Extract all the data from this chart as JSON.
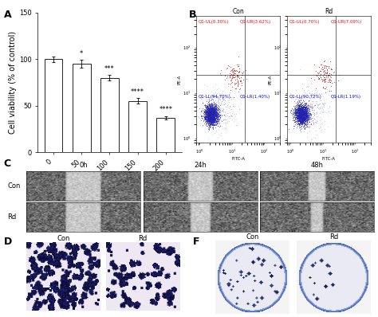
{
  "bar_values": [
    100,
    95,
    80,
    55,
    37
  ],
  "bar_errors": [
    3,
    4,
    3,
    3,
    2
  ],
  "bar_categories": [
    "0",
    "50",
    "100",
    "150",
    "200"
  ],
  "bar_color": "#ffffff",
  "bar_edgecolor": "#000000",
  "ylabel": "Cell viability (% of control)",
  "ylim": [
    0,
    150
  ],
  "yticks": [
    0,
    50,
    100,
    150
  ],
  "significance": [
    "",
    "*",
    "***",
    "****",
    "****"
  ],
  "panel_label_fontsize": 9,
  "tick_label_fontsize": 6,
  "axis_label_fontsize": 7,
  "sig_fontsize": 6,
  "bg_color": "#ffffff",
  "scratch_time_labels": [
    "0h",
    "24h",
    "48h"
  ],
  "scratch_row_labels": [
    "Con",
    "Rd"
  ],
  "invasion_labels": [
    "Con",
    "Rd"
  ],
  "colony_labels": [
    "Con",
    "Rd"
  ]
}
